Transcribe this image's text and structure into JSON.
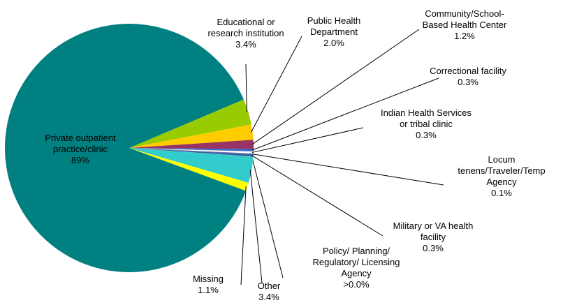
{
  "chart_data": {
    "type": "pie",
    "categories": [
      "Educational or\nresearch institution",
      "Public Health\nDepartment",
      "Community/School-\nBased Health Center",
      "Correctional facility",
      "Indian Health Services\nor tribal clinic",
      "Locum\ntenens/Traveler/Temp\nAgency",
      "Military or VA health\nfacility",
      "Policy/ Planning/\nRegulatory/ Licensing\nAgency",
      "Other",
      "Missing",
      "Private outpatient\npractice/clinic"
    ],
    "values": [
      3.4,
      2.0,
      1.2,
      0.3,
      0.3,
      0.1,
      0.3,
      0.04,
      3.4,
      1.1,
      89
    ],
    "value_labels": [
      "3.4%",
      "2.0%",
      "1.2%",
      "0.3%",
      "0.3%",
      "0.1%",
      "0.3%",
      ">0.0%",
      "3.4%",
      "1.1%",
      "89%"
    ],
    "colors": [
      "#99cc00",
      "#ffcc00",
      "#993366",
      "#3366cc",
      "#ffffff",
      "#6666cc",
      "#336699",
      "#99ccff",
      "#33cccc",
      "#ffff00",
      "#008080"
    ]
  }
}
